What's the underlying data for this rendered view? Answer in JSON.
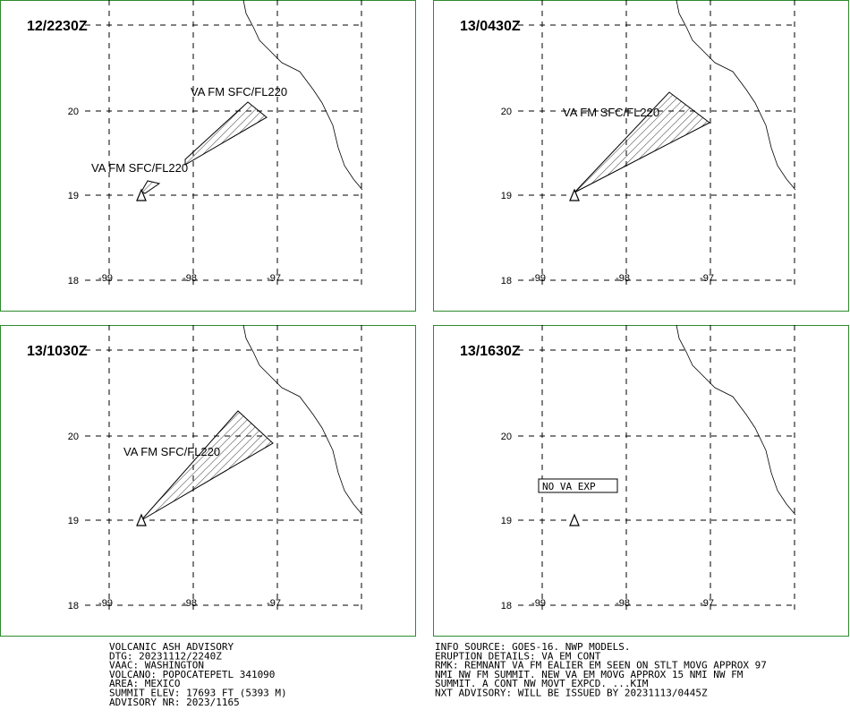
{
  "panels": [
    {
      "time": "12/2230Z",
      "annotations": [
        "VA FM SFC/FL220",
        "VA FM SFC/FL220"
      ]
    },
    {
      "time": "13/0430Z",
      "annotations": [
        "VA FM SFC/FL220"
      ]
    },
    {
      "time": "13/1030Z",
      "annotations": [
        "VA FM SFC/FL220"
      ]
    },
    {
      "time": "13/1630Z",
      "annotations": [
        "NO VA EXP"
      ]
    }
  ],
  "lat_labels": [
    "20",
    "19",
    "18"
  ],
  "lon_labels": [
    "-99",
    "-98",
    "-97"
  ],
  "advisory_left": [
    "VOLCANIC ASH ADVISORY",
    "DTG: 20231112/2240Z",
    "VAAC: WASHINGTON",
    "VOLCANO: POPOCATEPETL 341090",
    "AREA: MEXICO",
    "SUMMIT ELEV: 17693 FT (5393 M)",
    "ADVISORY NR: 2023/1165"
  ],
  "advisory_right": [
    "INFO SOURCE: GOES-16. NWP MODELS.",
    "ERUPTION DETAILS: VA EM CONT",
    "RMK: REMNANT VA FM EALIER EM SEEN ON STLT MOVG APPROX 97",
    "NMI NW FM SUMMIT. NEW VA EM MOVG APPROX 15 NMI NW FM",
    "SUMMIT. A CONT NW MOVT EXPCD. ...KIM",
    "NXT ADVISORY: WILL BE ISSUED BY 20231113/0445Z"
  ]
}
